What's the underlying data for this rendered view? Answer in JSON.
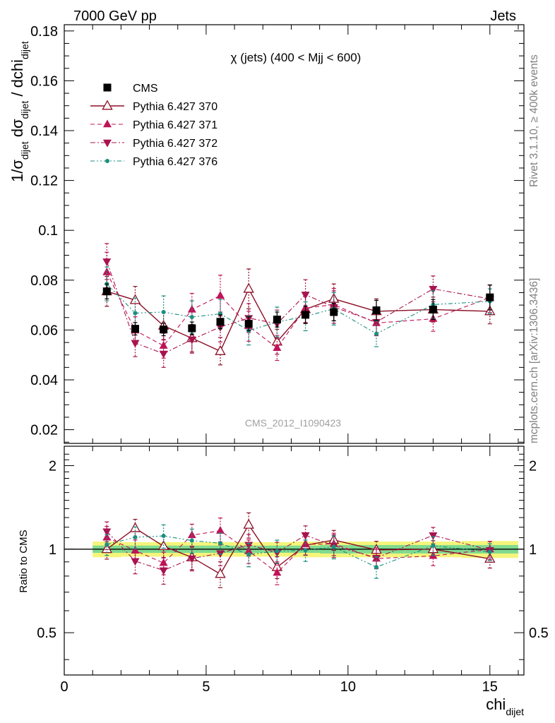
{
  "header": {
    "left": "7000 GeV pp",
    "right": "Jets"
  },
  "side_labels": {
    "top": "Rivet 3.1.10, ≥ 400k events",
    "bottom": "mcplots.cern.ch [arXiv:1306.3436]"
  },
  "chart_data": {
    "type": "scatter",
    "title": "χ (jets) (400 < Mjj <  600)",
    "watermark": "CMS_2012_I1090423",
    "xlabel_main": "chi",
    "xlabel_sub": "dijet",
    "ylabel": {
      "a": "1/σ",
      "a_sub": "dijet",
      "b": " dσ",
      "b_sub": "dijet",
      "c": " / dchi",
      "c_sub": "dijet"
    },
    "xlim": [
      0,
      16.2
    ],
    "ylim": [
      0.0145,
      0.1825
    ],
    "x_ticks": [
      "0",
      "5",
      "10",
      "15"
    ],
    "y_ticks": [
      "0.02",
      "0.04",
      "0.06",
      "0.08",
      "0.1",
      "0.12",
      "0.14",
      "0.16",
      "0.18"
    ],
    "x": [
      1.5,
      2.5,
      3.5,
      4.5,
      5.5,
      6.5,
      7.5,
      8.5,
      9.5,
      11,
      13,
      15
    ],
    "x_bins": [
      [
        1,
        2
      ],
      [
        2,
        3
      ],
      [
        3,
        4
      ],
      [
        4,
        5
      ],
      [
        5,
        6
      ],
      [
        6,
        7
      ],
      [
        7,
        8
      ],
      [
        8,
        9
      ],
      [
        9,
        10
      ],
      [
        10,
        12
      ],
      [
        12,
        14
      ],
      [
        14,
        16
      ]
    ],
    "series": [
      {
        "name": "CMS",
        "color": "#000000",
        "marker": "square",
        "line": "none",
        "values": [
          0.0755,
          0.0605,
          0.0602,
          0.0607,
          0.0633,
          0.0625,
          0.0642,
          0.0661,
          0.0672,
          0.0679,
          0.0682,
          0.0731
        ],
        "errors": [
          0.003,
          0.0025,
          0.0025,
          0.0025,
          0.0028,
          0.0028,
          0.003,
          0.0035,
          0.0035,
          0.004,
          0.004,
          0.005
        ]
      },
      {
        "name": "Pythia 6.427 370",
        "color": "#8b0f26",
        "marker": "triangle-up-open",
        "line": "solid",
        "values": [
          0.0755,
          0.072,
          0.0617,
          0.0567,
          0.0515,
          0.0765,
          0.0553,
          0.0683,
          0.0725,
          0.0675,
          0.0682,
          0.0675
        ],
        "errors": [
          0.006,
          0.0055,
          0.0055,
          0.0055,
          0.0055,
          0.008,
          0.005,
          0.0055,
          0.006,
          0.005,
          0.005,
          0.005
        ]
      },
      {
        "name": "Pythia 6.427 371",
        "color": "#c01358",
        "marker": "triangle-up",
        "line": "dashed",
        "values": [
          0.0832,
          0.0598,
          0.0537,
          0.0682,
          0.0738,
          0.0615,
          0.0528,
          0.0688,
          0.0702,
          0.0628,
          0.0645,
          0.073
        ],
        "errors": [
          0.008,
          0.0055,
          0.005,
          0.0065,
          0.0082,
          0.006,
          0.005,
          0.0058,
          0.0065,
          0.005,
          0.005,
          0.005
        ]
      },
      {
        "name": "Pythia 6.427 372",
        "color": "#a8134e",
        "marker": "triangle-down",
        "line": "dashdot",
        "values": [
          0.0875,
          0.0548,
          0.0505,
          0.0562,
          0.0612,
          0.0648,
          0.0625,
          0.0742,
          0.0692,
          0.0632,
          0.0765,
          0.0725
        ],
        "errors": [
          0.0072,
          0.0055,
          0.0055,
          0.0055,
          0.006,
          0.0058,
          0.0055,
          0.006,
          0.0065,
          0.0055,
          0.0052,
          0.0055
        ]
      },
      {
        "name": "Pythia 6.427 376",
        "color": "#1a8f80",
        "marker": "dot",
        "line": "dashdotdot",
        "values": [
          0.0785,
          0.0668,
          0.0672,
          0.0652,
          0.0665,
          0.0598,
          0.0632,
          0.0655,
          0.0685,
          0.0585,
          0.0702,
          0.0715
        ],
        "errors": [
          0.0068,
          0.006,
          0.0065,
          0.0065,
          0.0058,
          0.0058,
          0.006,
          0.0058,
          0.0065,
          0.0052,
          0.0055,
          0.005
        ]
      }
    ],
    "ratio": {
      "ylabel": "Ratio to CMS",
      "y_log": true,
      "ylim": [
        0.352,
        2.35
      ],
      "y_ticks": [
        "0.5",
        "1",
        "2"
      ],
      "band_inner_color": "#7fd98f",
      "band_outer_color": "#f4f57a",
      "band_rel_inner": [
        0.03,
        0.03,
        0.03,
        0.03,
        0.03,
        0.03,
        0.03,
        0.03,
        0.035,
        0.035,
        0.035,
        0.035
      ],
      "band_rel_outer": [
        0.065,
        0.06,
        0.06,
        0.06,
        0.06,
        0.06,
        0.06,
        0.065,
        0.065,
        0.065,
        0.065,
        0.07
      ]
    }
  }
}
